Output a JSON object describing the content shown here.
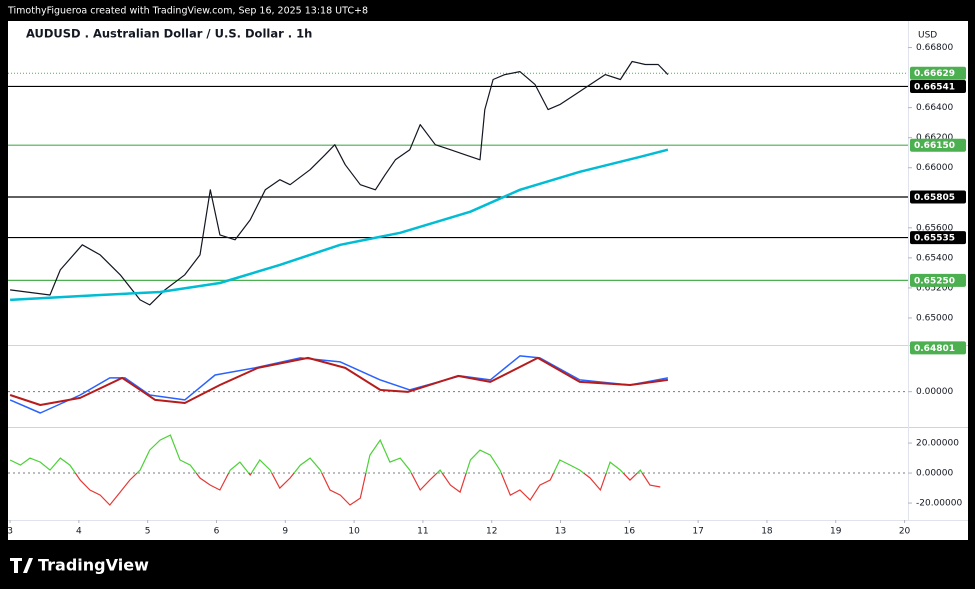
{
  "header": {
    "credit": "TimothyFigueroa created with TradingView.com, Sep 16, 2025 13:18 UTC+8"
  },
  "footer": {
    "brand": "TradingView"
  },
  "chart_data": [
    {
      "type": "line",
      "title": "AUDUSD . Australian Dollar / U.S. Dollar . 1h",
      "currency": "USD",
      "xlim": [
        -0.03,
        13.05
      ],
      "ylim": [
        0.6482,
        0.6697
      ],
      "yticks": [
        {
          "value": 0.668,
          "label": "0.66800"
        },
        {
          "value": 0.664,
          "label": "0.66400"
        },
        {
          "value": 0.662,
          "label": "0.66200"
        },
        {
          "value": 0.66,
          "label": "0.66000"
        },
        {
          "value": 0.656,
          "label": "0.65600"
        },
        {
          "value": 0.654,
          "label": "0.65400"
        },
        {
          "value": 0.652,
          "label": "0.65200"
        },
        {
          "value": 0.65,
          "label": "0.65000"
        }
      ],
      "series": [
        {
          "color": "#131722",
          "width": 1.2,
          "x": [
            0,
            0.58,
            0.73,
            1.05,
            1.31,
            1.6,
            1.89,
            2.03,
            2.25,
            2.54,
            2.76,
            2.91,
            3.05,
            3.27,
            3.49,
            3.71,
            3.92,
            4.07,
            4.36,
            4.58,
            4.72,
            4.87,
            5.09,
            5.31,
            5.45,
            5.6,
            5.81,
            5.96,
            6.18,
            6.4,
            6.61,
            6.83,
            6.9,
            7.02,
            7.19,
            7.41,
            7.63,
            7.82,
            7.99,
            8.21,
            8.43,
            8.65,
            8.87,
            9.04,
            9.23,
            9.42,
            9.56
          ],
          "values": [
            0.65187,
            0.65153,
            0.6532,
            0.65487,
            0.6542,
            0.65287,
            0.6512,
            0.65087,
            0.65187,
            0.65287,
            0.6542,
            0.65853,
            0.65553,
            0.6552,
            0.65653,
            0.65853,
            0.6592,
            0.65887,
            0.65987,
            0.66087,
            0.66153,
            0.6602,
            0.65887,
            0.65853,
            0.65953,
            0.66053,
            0.6612,
            0.66287,
            0.66153,
            0.6612,
            0.66087,
            0.66053,
            0.66387,
            0.66587,
            0.6662,
            0.6664,
            0.66553,
            0.66387,
            0.6642,
            0.66487,
            0.66553,
            0.6662,
            0.66587,
            0.66707,
            0.66687,
            0.66687,
            0.6662
          ]
        },
        {
          "color": "#00bcd4",
          "width": 2.5,
          "x": [
            0,
            1.31,
            2.18,
            3.05,
            3.92,
            4.8,
            5.67,
            6.69,
            7.41,
            8.28,
            9.16,
            9.56
          ],
          "values": [
            0.6512,
            0.65153,
            0.65173,
            0.65233,
            0.65353,
            0.65487,
            0.65567,
            0.65707,
            0.65853,
            0.65973,
            0.66073,
            0.6612
          ]
        }
      ],
      "last_price": {
        "value": 0.66629,
        "color": "#4caf50"
      },
      "levels": [
        {
          "value": 0.66541,
          "color": "#000000"
        },
        {
          "value": 0.6615,
          "label": "0.66150",
          "color": "#4caf50"
        },
        {
          "value": 0.65805,
          "color": "#000000"
        },
        {
          "value": 0.65535,
          "color": "#000000"
        },
        {
          "value": 0.6525,
          "label": "0.65250",
          "color": "#4caf50"
        }
      ],
      "price_tags": [
        {
          "value": 0.64801,
          "color": "#4caf50"
        }
      ]
    },
    {
      "type": "line",
      "xlim": [
        -0.03,
        13.05
      ],
      "ylim": [
        -0.0025,
        0.0035
      ],
      "yticks": [
        {
          "value": 0,
          "label": "0.00000"
        }
      ],
      "zero_line": true,
      "series": [
        {
          "color": "#2962ff",
          "width": 1.5,
          "x": [
            0,
            0.44,
            1.02,
            1.45,
            1.67,
            2.03,
            2.54,
            2.98,
            3.56,
            4.22,
            4.8,
            5.38,
            5.81,
            6.54,
            6.98,
            7.41,
            7.7,
            8.28,
            9.01,
            9.56
          ],
          "values": [
            -0.00062,
            -0.0016,
            -0.00025,
            0.00103,
            0.00103,
            -0.00025,
            -0.00062,
            0.00125,
            0.00178,
            0.00253,
            0.00223,
            0.00088,
            0.00013,
            0.00118,
            0.00088,
            0.00268,
            0.00253,
            0.00088,
            0.0005,
            0.00103
          ]
        },
        {
          "color": "#b71c1c",
          "width": 2,
          "x": [
            0,
            0.44,
            1.02,
            1.63,
            2.11,
            2.54,
            3.05,
            3.6,
            4.33,
            4.87,
            5.38,
            5.78,
            6.51,
            6.98,
            7.67,
            8.28,
            9.01,
            9.56
          ],
          "values": [
            -0.00025,
            -0.001,
            -0.00047,
            0.00103,
            -0.00062,
            -0.00085,
            0.0005,
            0.00178,
            0.00253,
            0.00178,
            0.00013,
            -2e-05,
            0.00118,
            0.00073,
            0.00253,
            0.00073,
            0.0005,
            0.00088
          ]
        }
      ]
    },
    {
      "type": "line",
      "xlim": [
        -0.03,
        13.05
      ],
      "ylim": [
        -31.3,
        28.7
      ],
      "yticks": [
        {
          "value": 20,
          "label": "20.00000"
        },
        {
          "value": 0,
          "label": "0.00000"
        },
        {
          "value": -20,
          "label": "-20.00000"
        }
      ],
      "zero_line": true,
      "xticks": [
        {
          "value": 0,
          "label": "3"
        },
        {
          "value": 1,
          "label": "4"
        },
        {
          "value": 2,
          "label": "5"
        },
        {
          "value": 3,
          "label": "6"
        },
        {
          "value": 4,
          "label": "9"
        },
        {
          "value": 5,
          "label": "10"
        },
        {
          "value": 6,
          "label": "11"
        },
        {
          "value": 7,
          "label": "12"
        },
        {
          "value": 8,
          "label": "13"
        },
        {
          "value": 9,
          "label": "16"
        },
        {
          "value": 10,
          "label": "17"
        },
        {
          "value": 11,
          "label": "18"
        },
        {
          "value": 12,
          "label": "19"
        },
        {
          "value": 13,
          "label": "20"
        }
      ],
      "series": [
        {
          "color_above": "#4cd137",
          "color_below": "#e53935",
          "width": 1.2,
          "x": [
            0,
            0.15,
            0.29,
            0.44,
            0.58,
            0.73,
            0.87,
            1.02,
            1.16,
            1.31,
            1.45,
            1.6,
            1.74,
            1.89,
            2.03,
            2.18,
            2.33,
            2.47,
            2.62,
            2.76,
            2.91,
            3.05,
            3.2,
            3.34,
            3.49,
            3.63,
            3.78,
            3.92,
            4.07,
            4.22,
            4.36,
            4.51,
            4.65,
            4.8,
            4.94,
            5.09,
            5.23,
            5.38,
            5.52,
            5.67,
            5.81,
            5.96,
            6.1,
            6.25,
            6.4,
            6.54,
            6.69,
            6.83,
            6.98,
            7.12,
            7.27,
            7.41,
            7.56,
            7.7,
            7.85,
            7.99,
            8.14,
            8.28,
            8.43,
            8.58,
            8.72,
            8.87,
            9.01,
            9.16,
            9.3,
            9.45
          ],
          "values": [
            8.7,
            5.3,
            10,
            7.3,
            2,
            10,
            5.3,
            -4.7,
            -11.3,
            -14.7,
            -21.3,
            -12.7,
            -4.7,
            2,
            15.3,
            22,
            25.3,
            8.7,
            5.3,
            -3.3,
            -8,
            -11.3,
            2,
            7.3,
            -1.3,
            8.7,
            2,
            -10,
            -3.3,
            5.3,
            10,
            2,
            -11.3,
            -14.7,
            -21.3,
            -16.7,
            12,
            22,
            7.3,
            10,
            2,
            -11.3,
            -4.7,
            2,
            -8,
            -12.7,
            8.7,
            15.3,
            12,
            2,
            -14.7,
            -11.3,
            -18,
            -8,
            -4.7,
            8.7,
            5.3,
            2,
            -3.3,
            -11.3,
            7.3,
            2,
            -4.7,
            2,
            -8,
            -9.3
          ]
        }
      ]
    }
  ]
}
